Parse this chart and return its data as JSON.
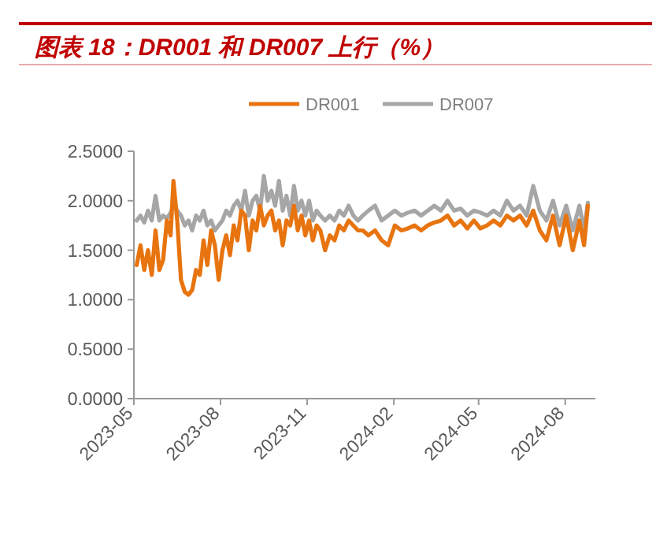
{
  "chart_data": {
    "type": "line",
    "title": "图表 18：DR001 和 DR007 上行（%）",
    "legend": "top",
    "grid": false,
    "marker": "none",
    "line_style": "solid",
    "xlim": [
      "2023-05-01",
      "2024-09-02"
    ],
    "xticks": [
      {
        "value": "2023-05-01",
        "label": "2023-05"
      },
      {
        "value": "2023-08-01",
        "label": "2023-08"
      },
      {
        "value": "2023-11-01",
        "label": "2023-11"
      },
      {
        "value": "2024-02-01",
        "label": "2024-02"
      },
      {
        "value": "2024-05-01",
        "label": "2024-05"
      },
      {
        "value": "2024-08-01",
        "label": "2024-08"
      }
    ],
    "ylim": [
      0,
      2.5
    ],
    "yticks": [
      {
        "value": 0,
        "label": "0.0000"
      },
      {
        "value": 0.5,
        "label": "0.5000"
      },
      {
        "value": 1,
        "label": "1.0000"
      },
      {
        "value": 1.5,
        "label": "1.5000"
      },
      {
        "value": 2,
        "label": "2.0000"
      },
      {
        "value": 2.5,
        "label": "2.5000"
      }
    ],
    "x": [
      "2023-05-04",
      "2023-05-08",
      "2023-05-12",
      "2023-05-16",
      "2023-05-20",
      "2023-05-24",
      "2023-05-28",
      "2023-06-01",
      "2023-06-05",
      "2023-06-09",
      "2023-06-12",
      "2023-06-16",
      "2023-06-20",
      "2023-06-24",
      "2023-06-28",
      "2023-07-02",
      "2023-07-06",
      "2023-07-10",
      "2023-07-14",
      "2023-07-18",
      "2023-07-22",
      "2023-07-26",
      "2023-07-30",
      "2023-08-03",
      "2023-08-07",
      "2023-08-11",
      "2023-08-15",
      "2023-08-19",
      "2023-08-23",
      "2023-08-27",
      "2023-08-31",
      "2023-09-04",
      "2023-09-08",
      "2023-09-12",
      "2023-09-16",
      "2023-09-20",
      "2023-09-24",
      "2023-09-28",
      "2023-10-02",
      "2023-10-06",
      "2023-10-10",
      "2023-10-14",
      "2023-10-18",
      "2023-10-22",
      "2023-10-26",
      "2023-10-30",
      "2023-11-03",
      "2023-11-07",
      "2023-11-11",
      "2023-11-15",
      "2023-11-20",
      "2023-11-25",
      "2023-11-30",
      "2023-12-05",
      "2023-12-10",
      "2023-12-15",
      "2023-12-20",
      "2023-12-25",
      "2023-12-30",
      "2024-01-05",
      "2024-01-12",
      "2024-01-19",
      "2024-01-26",
      "2024-02-02",
      "2024-02-09",
      "2024-02-16",
      "2024-02-23",
      "2024-03-01",
      "2024-03-08",
      "2024-03-15",
      "2024-03-22",
      "2024-03-29",
      "2024-04-05",
      "2024-04-12",
      "2024-04-19",
      "2024-04-26",
      "2024-05-03",
      "2024-05-10",
      "2024-05-17",
      "2024-05-24",
      "2024-05-31",
      "2024-06-07",
      "2024-06-14",
      "2024-06-21",
      "2024-06-28",
      "2024-07-05",
      "2024-07-12",
      "2024-07-19",
      "2024-07-26",
      "2024-08-02",
      "2024-08-09",
      "2024-08-16",
      "2024-08-21",
      "2024-08-25"
    ],
    "series": [
      {
        "name": "DR001",
        "color": "#e8740f",
        "values": [
          1.35,
          1.55,
          1.3,
          1.5,
          1.25,
          1.7,
          1.3,
          1.4,
          1.8,
          1.65,
          2.2,
          1.8,
          1.2,
          1.08,
          1.05,
          1.1,
          1.3,
          1.25,
          1.6,
          1.35,
          1.7,
          1.55,
          1.2,
          1.5,
          1.65,
          1.45,
          1.75,
          1.6,
          1.9,
          1.85,
          1.5,
          1.8,
          1.7,
          1.95,
          1.75,
          1.85,
          1.9,
          1.7,
          1.8,
          1.55,
          1.8,
          1.75,
          1.95,
          1.7,
          1.85,
          1.65,
          1.8,
          1.6,
          1.75,
          1.7,
          1.5,
          1.65,
          1.6,
          1.75,
          1.7,
          1.8,
          1.75,
          1.7,
          1.7,
          1.65,
          1.7,
          1.6,
          1.55,
          1.75,
          1.7,
          1.72,
          1.75,
          1.7,
          1.75,
          1.78,
          1.8,
          1.85,
          1.75,
          1.8,
          1.72,
          1.8,
          1.72,
          1.75,
          1.8,
          1.75,
          1.85,
          1.8,
          1.85,
          1.75,
          1.9,
          1.7,
          1.6,
          1.85,
          1.55,
          1.85,
          1.5,
          1.8,
          1.55,
          1.95
        ]
      },
      {
        "name": "DR007",
        "color": "#a6a6a6",
        "values": [
          1.8,
          1.85,
          1.78,
          1.9,
          1.8,
          2.05,
          1.8,
          1.85,
          1.82,
          1.88,
          1.95,
          1.9,
          1.85,
          1.75,
          1.8,
          1.7,
          1.85,
          1.8,
          1.9,
          1.75,
          1.8,
          1.7,
          1.75,
          1.8,
          1.9,
          1.85,
          1.95,
          2.0,
          1.9,
          2.1,
          1.85,
          2.0,
          2.05,
          1.9,
          2.25,
          2.0,
          2.1,
          1.95,
          2.2,
          1.9,
          2.05,
          1.85,
          2.15,
          1.9,
          2.0,
          1.85,
          2.0,
          1.8,
          1.9,
          1.85,
          1.8,
          1.85,
          1.8,
          1.9,
          1.85,
          1.95,
          1.85,
          1.8,
          1.85,
          1.9,
          1.95,
          1.8,
          1.85,
          1.9,
          1.85,
          1.88,
          1.9,
          1.85,
          1.9,
          1.95,
          1.9,
          2.0,
          1.9,
          1.92,
          1.85,
          1.9,
          1.88,
          1.85,
          1.9,
          1.85,
          2.0,
          1.9,
          1.95,
          1.85,
          2.15,
          1.9,
          1.8,
          2.0,
          1.75,
          1.95,
          1.7,
          1.95,
          1.7,
          1.98
        ]
      }
    ]
  }
}
